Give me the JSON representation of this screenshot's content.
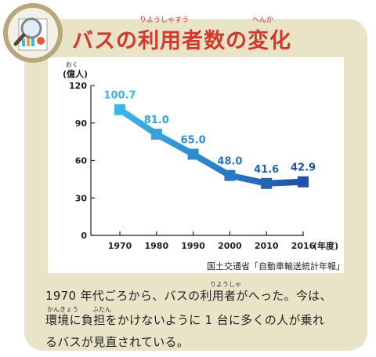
{
  "header": {
    "title": "バスの利用者数の変化",
    "ruby_riyousha": "りようしゃすう",
    "ruby_henka": "へんか"
  },
  "chart_data": {
    "type": "line",
    "title": "バスの利用者数の変化",
    "unit_label": "(億人)",
    "unit_ruby": "おく",
    "x": [
      "1970",
      "1980",
      "1990",
      "2000",
      "2010",
      "2016"
    ],
    "values": [
      100.7,
      81.0,
      65.0,
      48.0,
      41.6,
      42.9
    ],
    "data_labels": [
      "100.7",
      "81.0",
      "65.0",
      "48.0",
      "41.6",
      "42.9"
    ],
    "y_ticks": [
      "0",
      "30",
      "60",
      "90",
      "120"
    ],
    "ylim": [
      0,
      120
    ],
    "xlabel": "(年度)",
    "grid": false,
    "colors": {
      "line_start": "#3ab6e6",
      "line_end": "#1f4fa8"
    }
  },
  "source": "国土交通省「自動車輸送統計年報」",
  "caption": {
    "line1": "1970 年代ごろから、バスの利用者がへった。今は、",
    "line2": "環境に負担をかけないように 1 台に多くの人が乗れ",
    "line3": "るバスが見直されている。",
    "ruby_riyousha": "りようしゃ",
    "ruby_kankyou": "かんきょう",
    "ruby_futan": "ふたん"
  }
}
